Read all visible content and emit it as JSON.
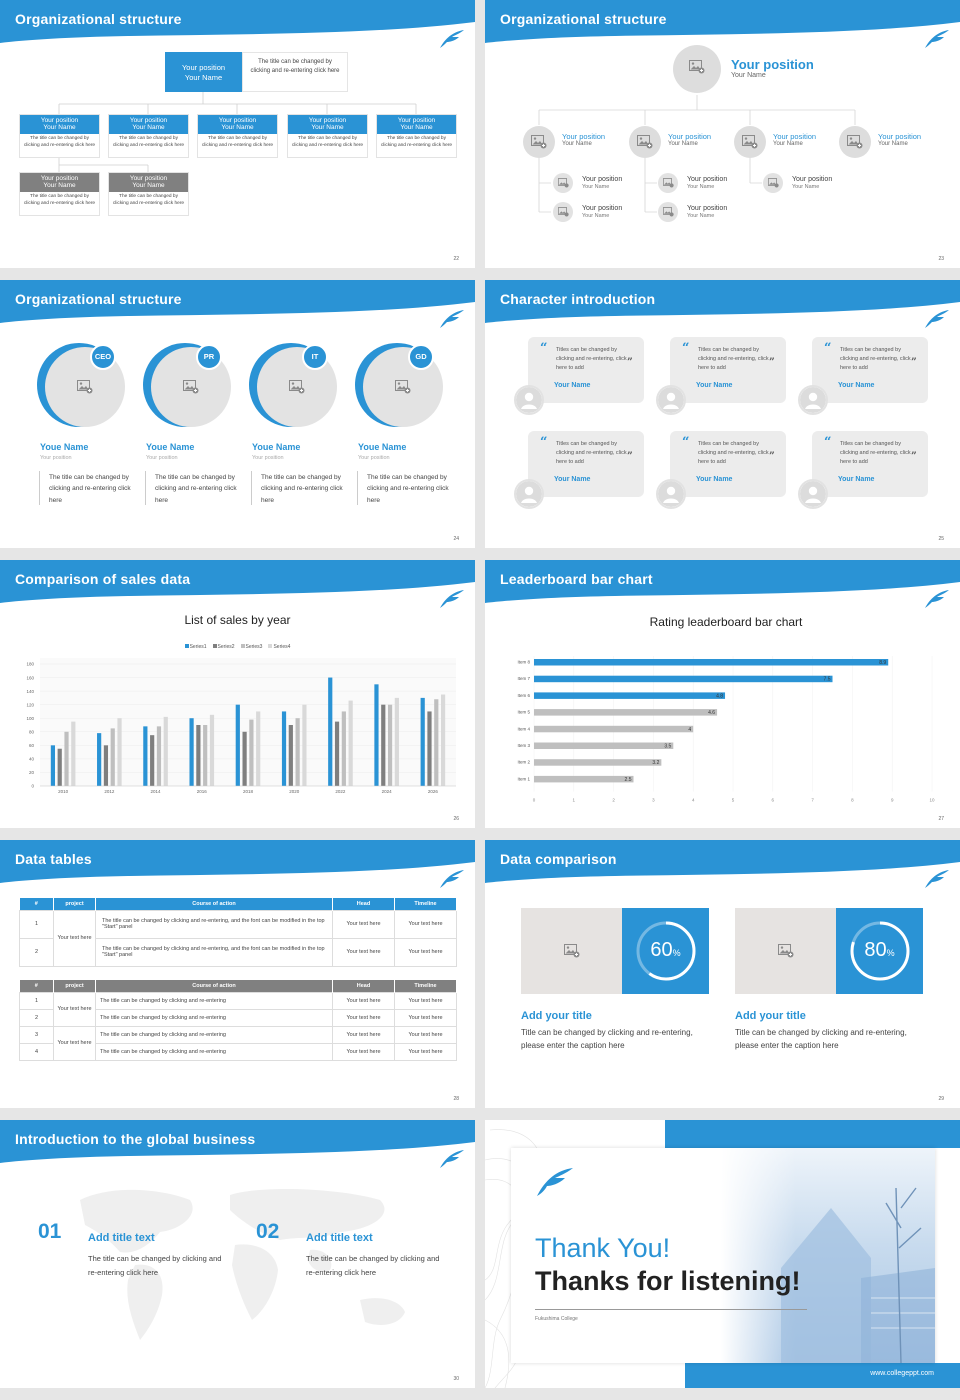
{
  "slides": {
    "s22": {
      "title": "Organizational structure",
      "page": "22",
      "top_box": {
        "position": "Your position",
        "name": "Your Name"
      },
      "top_desc": "The title can be changed by clicking and re-entering click here",
      "cards_blue": [
        {
          "position": "Your position",
          "name": "Your Name",
          "desc": "The title can be changed by clicking and re-entering click here"
        },
        {
          "position": "Your position",
          "name": "Your Name",
          "desc": "The title can be changed by clicking and re-entering click here"
        },
        {
          "position": "Your position",
          "name": "Your Name",
          "desc": "The title can be changed by clicking and re-entering click here"
        },
        {
          "position": "Your position",
          "name": "Your Name",
          "desc": "The title can be changed by clicking and re-entering click here"
        },
        {
          "position": "Your position",
          "name": "Your Name",
          "desc": "The title can be changed by clicking and re-entering click here"
        }
      ],
      "cards_gray": [
        {
          "position": "Your position",
          "name": "Your Name",
          "desc": "The title can be changed by clicking and re-entering click here"
        },
        {
          "position": "Your position",
          "name": "Your Name",
          "desc": "The title can be changed by clicking and re-entering click here"
        }
      ]
    },
    "s23": {
      "title": "Organizational structure",
      "page": "23",
      "top": {
        "position": "Your position",
        "name": "Your Name"
      },
      "level2": [
        {
          "position": "Your position",
          "name": "Your Name"
        },
        {
          "position": "Your position",
          "name": "Your Name"
        },
        {
          "position": "Your position",
          "name": "Your Name"
        },
        {
          "position": "Your position",
          "name": "Your Name"
        }
      ],
      "level3": [
        {
          "position": "Your position",
          "name": "Your Name"
        },
        {
          "position": "Your position",
          "name": "Your Name"
        },
        {
          "position": "Your position",
          "name": "Your Name"
        },
        {
          "position": "Your position",
          "name": "Your Name"
        },
        {
          "position": "Your position",
          "name": "Your Name"
        }
      ]
    },
    "s24": {
      "title": "Organizational structure",
      "page": "24",
      "people": [
        {
          "badge": "CEO",
          "name": "Youe Name",
          "position": "Your position",
          "desc": "The title can be changed by clicking and re-entering click here"
        },
        {
          "badge": "PR",
          "name": "Youe Name",
          "position": "Your position",
          "desc": "The title can be changed by clicking and re-entering click here"
        },
        {
          "badge": "IT",
          "name": "Youe Name",
          "position": "Your position",
          "desc": "The title can be changed by clicking and re-entering click here"
        },
        {
          "badge": "GD",
          "name": "Youe Name",
          "position": "Your position",
          "desc": "The title can be changed by clicking and re-entering click here"
        }
      ]
    },
    "s25": {
      "title": "Character introduction",
      "page": "25",
      "quote": "Titles can be changed by clicking and re-entering, click here to add",
      "name": "Your Name"
    },
    "s26": {
      "title": "Comparison of sales data",
      "page": "26"
    },
    "s27": {
      "title": "Leaderboard bar chart",
      "page": "27"
    },
    "s28": {
      "title": "Data tables",
      "page": "28",
      "t1": {
        "headers": [
          "#",
          "project",
          "Course of action",
          "Head",
          "Timeline"
        ],
        "group": "Your text here",
        "rows": [
          {
            "n": "1",
            "text": "The title can be changed by clicking and re-entering, and the font can be modified in the top \"Start\" panel",
            "head": "Your text here",
            "time": "Your text here"
          },
          {
            "n": "2",
            "text": "The title can be changed by clicking and re-entering, and the font can be modified in the top \"Start\" panel",
            "head": "Your text here",
            "time": "Your text here"
          }
        ]
      },
      "t2": {
        "headers": [
          "#",
          "project",
          "Course of action",
          "Head",
          "Timeline"
        ],
        "groups": [
          "Your text here",
          "Your text here"
        ],
        "rows": [
          {
            "n": "1",
            "text": "The title can be changed by clicking and re-entering",
            "head": "Your text here",
            "time": "Your text here"
          },
          {
            "n": "2",
            "text": "The title can be changed by clicking and re-entering",
            "head": "Your text here",
            "time": "Your text here"
          },
          {
            "n": "3",
            "text": "The title can be changed by clicking and re-entering",
            "head": "Your text here",
            "time": "Your text here"
          },
          {
            "n": "4",
            "text": "The title can be changed by clicking and re-entering",
            "head": "Your text here",
            "time": "Your text here"
          }
        ]
      }
    },
    "s29": {
      "title": "Data comparison",
      "page": "29",
      "items": [
        {
          "pct": "60",
          "unit": "%",
          "title": "Add your title",
          "desc": "Title can be changed by clicking and re-entering, please enter the caption here"
        },
        {
          "pct": "80",
          "unit": "%",
          "title": "Add your title",
          "desc": "Title can be changed by clicking and re-entering, please enter the caption here"
        }
      ]
    },
    "s30": {
      "title": "Introduction to the global business",
      "page": "30",
      "items": [
        {
          "num": "01",
          "title": "Add title text",
          "desc": "The title can be changed by clicking and re-entering click here"
        },
        {
          "num": "02",
          "title": "Add title text",
          "desc": "The title can be changed by clicking and re-entering click here"
        }
      ]
    },
    "s31": {
      "thanks": "Thank You!",
      "sub": "Thanks for listening!",
      "college": "Fukushima College",
      "url": "www.collegeppt.com"
    }
  },
  "chart_data": [
    {
      "type": "bar",
      "title": "List of sales by year",
      "categories": [
        "2010",
        "2012",
        "2014",
        "2016",
        "2018",
        "2020",
        "2022",
        "2024",
        "2026"
      ],
      "series": [
        {
          "name": "Series1",
          "values": [
            60,
            78,
            88,
            100,
            120,
            110,
            160,
            150,
            130
          ]
        },
        {
          "name": "Series2",
          "values": [
            55,
            60,
            75,
            90,
            80,
            90,
            95,
            120,
            110
          ]
        },
        {
          "name": "Series3",
          "values": [
            80,
            85,
            88,
            90,
            98,
            100,
            110,
            120,
            128
          ]
        },
        {
          "name": "Series4",
          "values": [
            95,
            100,
            102,
            105,
            110,
            120,
            126,
            130,
            135
          ]
        }
      ],
      "ylim": [
        0,
        180
      ],
      "yticks": [
        "0",
        "20",
        "40",
        "60",
        "80",
        "100",
        "120",
        "140",
        "160",
        "180"
      ],
      "legend": "top",
      "colors": [
        "#2a93d5",
        "#7f7f7f",
        "#bfbfbf",
        "#d9d9d9"
      ]
    },
    {
      "type": "bar",
      "orientation": "horizontal",
      "title": "Rating leaderboard bar chart",
      "categories": [
        "Item 8",
        "Item 7",
        "Item 6",
        "Item 5",
        "Item 4",
        "Item 3",
        "Item 2",
        "Item 1"
      ],
      "values": [
        8.9,
        7.5,
        4.8,
        4.6,
        4,
        3.5,
        3.2,
        2.5
      ],
      "labels": [
        "8.9",
        "7.5",
        "4.8",
        "4.6",
        "4",
        "3.5",
        "3.2",
        "2.5"
      ],
      "highlight": [
        true,
        true,
        true,
        false,
        false,
        false,
        false,
        false
      ],
      "xlim": [
        0,
        10
      ],
      "xticks": [
        "0",
        "1",
        "2",
        "3",
        "4",
        "5",
        "6",
        "7",
        "8",
        "9",
        "10"
      ],
      "colors": [
        "#2a93d5",
        "#bfbfbf"
      ]
    }
  ]
}
